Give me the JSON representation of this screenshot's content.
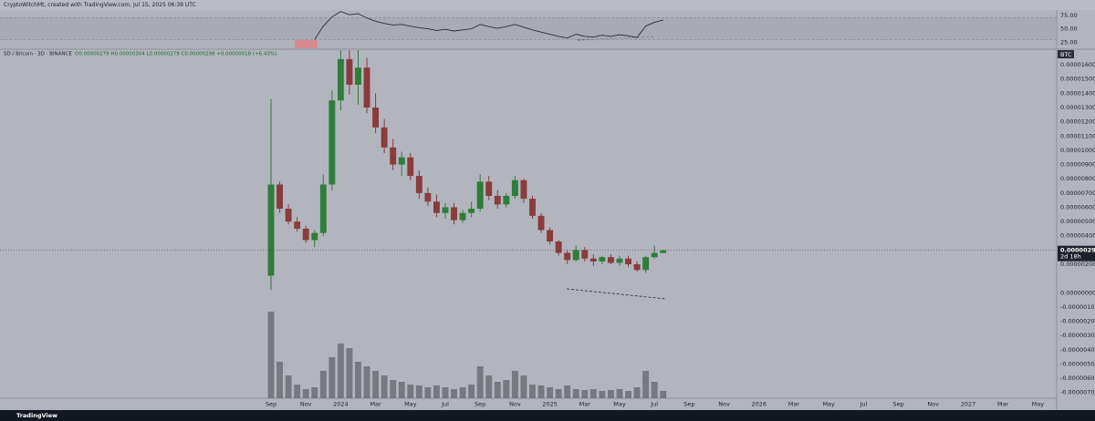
{
  "header": "CryptoWitchMt, created with TradingView.com, Jul 15, 2025 06:39 UTC",
  "footer_logo": "TradingView",
  "chart_data": [
    {
      "type": "candlestick",
      "symbol": "SD / Bitcoin · 3D · BINANCE",
      "ohlc_legend": "O0.00000279 H0.00000304 L0.00000279 C0.00000298 +0.00000018 (+6.43%)",
      "currency": "BTC",
      "last_price": {
        "value": 2.98e-06,
        "label": "0.00000298"
      },
      "countdown": "2d 18h",
      "up_color": "#2e7d3a",
      "down_color": "#8a3b3b",
      "volume_color": "#6c6f77",
      "x": [
        1,
        1.5,
        2,
        2.5,
        3,
        3.5,
        4,
        4.5,
        5,
        5.5,
        6,
        6.5,
        7,
        7.5,
        8,
        8.5,
        9,
        9.5,
        10,
        10.5,
        11,
        11.5,
        12,
        12.5,
        13,
        13.5,
        14,
        14.5,
        15,
        15.5,
        16,
        16.5,
        17,
        17.5,
        18,
        18.5,
        19,
        19.5,
        20,
        20.5,
        21,
        21.5,
        22,
        22.5,
        23,
        23.5
      ],
      "open": [
        1.2e-06,
        7.6e-06,
        5.9e-06,
        5e-06,
        4.5e-06,
        3.7e-06,
        4.2e-06,
        7.6e-06,
        1.35e-05,
        1.64e-05,
        1.46e-05,
        1.58e-05,
        1.3e-05,
        1.16e-05,
        1.02e-05,
        9e-06,
        9.5e-06,
        8.2e-06,
        7e-06,
        6.4e-06,
        5.6e-06,
        6e-06,
        5.1e-06,
        5.6e-06,
        5.9e-06,
        7.8e-06,
        6.8e-06,
        6.2e-06,
        6.8e-06,
        7.9e-06,
        6.6e-06,
        5.4e-06,
        4.4e-06,
        3.6e-06,
        2.8e-06,
        2.3e-06,
        3e-06,
        2.4e-06,
        2.2e-06,
        2.5e-06,
        2.1e-06,
        2.4e-06,
        2e-06,
        1.6e-06,
        2.5e-06,
        2.79e-06
      ],
      "high": [
        1.36e-05,
        7.8e-06,
        6.2e-06,
        5.3e-06,
        4.7e-06,
        4.4e-06,
        8.3e-06,
        1.42e-05,
        1.75e-05,
        1.75e-05,
        1.72e-05,
        1.65e-05,
        1.4e-05,
        1.22e-05,
        1.08e-05,
        9.9e-06,
        9.8e-06,
        8.6e-06,
        7.4e-06,
        6.9e-06,
        6.3e-06,
        6.3e-06,
        5.8e-06,
        6.4e-06,
        8.3e-06,
        8.2e-06,
        7.2e-06,
        7e-06,
        8.2e-06,
        8e-06,
        6.8e-06,
        5.6e-06,
        4.6e-06,
        3.7e-06,
        3e-06,
        3.3e-06,
        3.2e-06,
        2.7e-06,
        2.6e-06,
        2.7e-06,
        2.6e-06,
        2.6e-06,
        2.2e-06,
        2.6e-06,
        3.3e-06,
        3.04e-06
      ],
      "low": [
        2e-07,
        5.6e-06,
        4.8e-06,
        4.3e-06,
        3.5e-06,
        3.2e-06,
        4e-06,
        7.2e-06,
        1.28e-05,
        1.39e-05,
        1.32e-05,
        1.26e-05,
        1.12e-05,
        9.8e-06,
        8.6e-06,
        8.2e-06,
        7.9e-06,
        6.6e-06,
        6.1e-06,
        5.3e-06,
        5.2e-06,
        4.8e-06,
        4.9e-06,
        5.3e-06,
        5.7e-06,
        6.5e-06,
        5.9e-06,
        6e-06,
        6.6e-06,
        6.3e-06,
        5.2e-06,
        4.2e-06,
        3.4e-06,
        2.6e-06,
        2e-06,
        2.2e-06,
        2.2e-06,
        1.9e-06,
        2e-06,
        2e-06,
        1.9e-06,
        1.8e-06,
        1.5e-06,
        1.4e-06,
        2.4e-06,
        2.79e-06
      ],
      "close": [
        7.6e-06,
        5.9e-06,
        5e-06,
        4.5e-06,
        3.7e-06,
        4.2e-06,
        7.6e-06,
        1.35e-05,
        1.64e-05,
        1.46e-05,
        1.58e-05,
        1.3e-05,
        1.16e-05,
        1.02e-05,
        9e-06,
        9.5e-06,
        8.2e-06,
        7e-06,
        6.4e-06,
        5.6e-06,
        6e-06,
        5.1e-06,
        5.6e-06,
        5.9e-06,
        7.8e-06,
        6.8e-06,
        6.2e-06,
        6.8e-06,
        7.9e-06,
        6.6e-06,
        5.4e-06,
        4.4e-06,
        3.6e-06,
        2.8e-06,
        2.3e-06,
        3e-06,
        2.4e-06,
        2.2e-06,
        2.5e-06,
        2.1e-06,
        2.4e-06,
        2e-06,
        1.6e-06,
        2.5e-06,
        2.8e-06,
        2.98e-06
      ],
      "volume": [
        95,
        40,
        25,
        15,
        10,
        12,
        30,
        45,
        60,
        55,
        40,
        35,
        30,
        25,
        20,
        18,
        15,
        14,
        12,
        14,
        12,
        10,
        12,
        15,
        35,
        25,
        18,
        20,
        30,
        25,
        15,
        14,
        12,
        10,
        14,
        10,
        9,
        10,
        8,
        9,
        10,
        8,
        12,
        30,
        18,
        8
      ],
      "volume_lim": [
        0,
        100
      ],
      "xlim": [
        -14.55,
        46.08
      ],
      "ylim": [
        -7.4e-06,
        1.703e-05
      ],
      "xticks": [
        {
          "value": 1,
          "label": "Sep"
        },
        {
          "value": 3,
          "label": "Nov"
        },
        {
          "value": 5,
          "label": "2024"
        },
        {
          "value": 7,
          "label": "Mar"
        },
        {
          "value": 9,
          "label": "May"
        },
        {
          "value": 11,
          "label": "Jul"
        },
        {
          "value": 13,
          "label": "Sep"
        },
        {
          "value": 15,
          "label": "Nov"
        },
        {
          "value": 17,
          "label": "2025"
        },
        {
          "value": 19,
          "label": "Mar"
        },
        {
          "value": 21,
          "label": "May"
        },
        {
          "value": 23,
          "label": "Jul"
        },
        {
          "value": 25,
          "label": "Sep"
        },
        {
          "value": 27,
          "label": "Nov"
        },
        {
          "value": 29,
          "label": "2026"
        },
        {
          "value": 31,
          "label": "Mar"
        },
        {
          "value": 33,
          "label": "May"
        },
        {
          "value": 35,
          "label": "Jul"
        },
        {
          "value": 37,
          "label": "Sep"
        },
        {
          "value": 39,
          "label": "Nov"
        },
        {
          "value": 41,
          "label": "2027"
        },
        {
          "value": 43,
          "label": "Mar"
        },
        {
          "value": 45,
          "label": "May"
        }
      ],
      "yticks": [
        {
          "value": 1.6e-05,
          "label": "0.00001600"
        },
        {
          "value": 1.5e-05,
          "label": "0.00001500"
        },
        {
          "value": 1.4e-05,
          "label": "0.00001400"
        },
        {
          "value": 1.3e-05,
          "label": "0.00001300"
        },
        {
          "value": 1.2e-05,
          "label": "0.00001200"
        },
        {
          "value": 1.1e-05,
          "label": "0.00001100"
        },
        {
          "value": 1e-05,
          "label": "0.00001000"
        },
        {
          "value": 9e-06,
          "label": "0.00000900"
        },
        {
          "value": 8e-06,
          "label": "0.00000800"
        },
        {
          "value": 7e-06,
          "label": "0.00000700"
        },
        {
          "value": 6e-06,
          "label": "0.00000600"
        },
        {
          "value": 5e-06,
          "label": "0.00000500"
        },
        {
          "value": 4e-06,
          "label": "0.00000400"
        },
        {
          "value": 2e-06,
          "label": "0.00000200"
        },
        {
          "value": 0,
          "label": "0.00000000"
        },
        {
          "value": -1e-06,
          "label": "-0.00000100"
        },
        {
          "value": -2e-06,
          "label": "-0.00000200"
        },
        {
          "value": -3e-06,
          "label": "-0.00000300"
        },
        {
          "value": -4e-06,
          "label": "-0.00000400"
        },
        {
          "value": -5e-06,
          "label": "-0.00000500"
        },
        {
          "value": -6e-06,
          "label": "-0.00000600"
        },
        {
          "value": -7e-06,
          "label": "-0.00000700"
        }
      ],
      "grid": false
    },
    {
      "type": "line",
      "color": "#2a2c33",
      "x": [
        1,
        1.5,
        2,
        2.5,
        3,
        3.5,
        4,
        4.5,
        5,
        5.5,
        6,
        6.5,
        7,
        7.5,
        8,
        8.5,
        9,
        9.5,
        10,
        10.5,
        11,
        11.5,
        12,
        12.5,
        13,
        13.5,
        14,
        14.5,
        15,
        15.5,
        16,
        16.5,
        17,
        17.5,
        18,
        18.5,
        19,
        19.5,
        20,
        20.5,
        21,
        21.5,
        22,
        22.5,
        23,
        23.5
      ],
      "values": [
        null,
        null,
        null,
        null,
        null,
        30,
        55,
        72,
        82,
        76,
        78,
        70,
        64,
        60,
        57,
        58,
        55,
        52,
        50,
        47,
        49,
        46,
        48,
        50,
        58,
        54,
        51,
        54,
        58,
        53,
        48,
        44,
        40,
        36,
        33,
        40,
        36,
        35,
        38,
        36,
        39,
        37,
        34,
        55,
        62,
        66
      ],
      "band": [
        30,
        70
      ],
      "xlim": [
        -14.55,
        46.08
      ],
      "ylim": [
        14,
        83
      ],
      "yticks": [
        {
          "value": 75,
          "label": "75.00"
        },
        {
          "value": 50,
          "label": "50.00"
        },
        {
          "value": 25,
          "label": "25.00"
        }
      ]
    }
  ]
}
